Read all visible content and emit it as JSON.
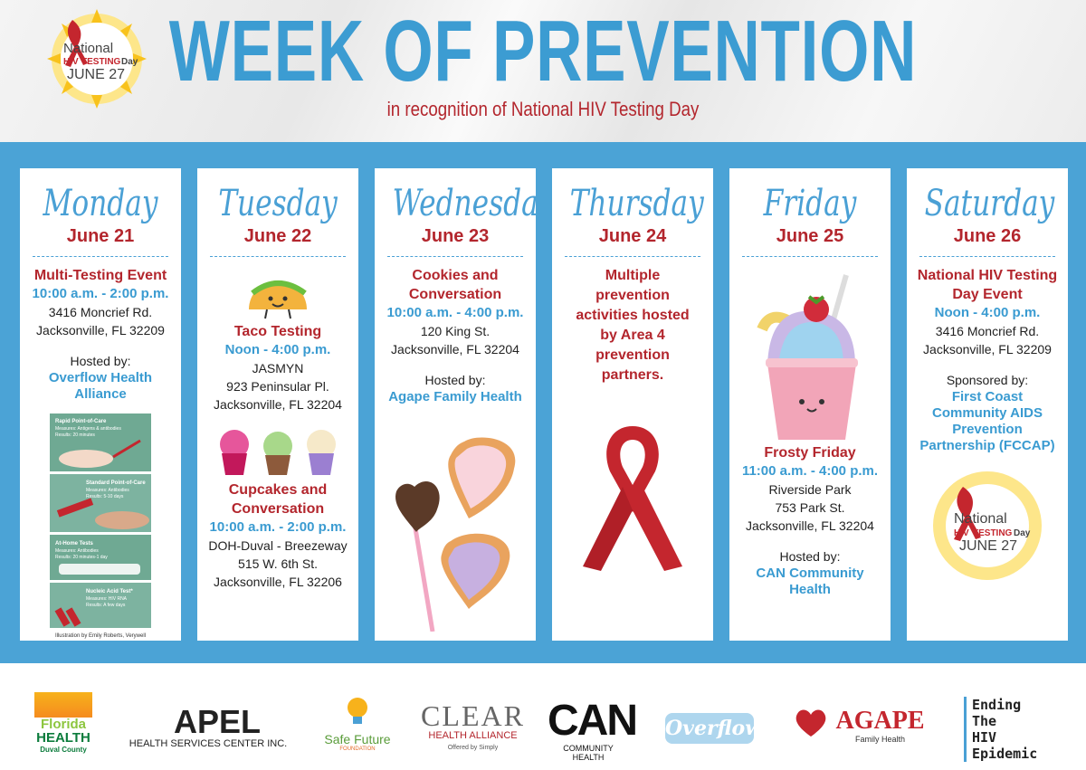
{
  "header": {
    "title": "WEEK OF PREVENTION",
    "subtitle": "in recognition of National HIV Testing Day",
    "badge": {
      "national": "National",
      "hiv": "HIV",
      "testing": "TESTING",
      "day": "Day",
      "date": "JUNE 27"
    }
  },
  "days": [
    {
      "day": "Monday",
      "date": "June 21",
      "event": "Multi-Testing Event",
      "time": "10:00 a.m. - 2:00 p.m.",
      "address": [
        "3416 Moncrief Rd.",
        "Jacksonville, FL 32209"
      ],
      "host_label": "Hosted by:",
      "host": "Overflow Health Alliance",
      "illustration": {
        "panels": [
          {
            "title": "Rapid Point-of-Care",
            "measures": "Measures: Antigens & antibodies",
            "results": "Results: 20 minutes"
          },
          {
            "title": "Standard Point-of-Care",
            "measures": "Measures: Antibodies",
            "results": "Results: 5-10 days"
          },
          {
            "title": "At-Home Tests",
            "measures": "Measures: Antibodies",
            "results": "Results: 20 minutes-1 day"
          },
          {
            "title": "Nucleic Acid Test*",
            "measures": "Measures: HIV RNA",
            "results": "Results: A few days"
          }
        ],
        "credit": "Illustration by Emily Roberts, Verywell"
      }
    },
    {
      "day": "Tuesday",
      "date": "June 22",
      "events": [
        {
          "title": "Taco Testing",
          "time": "Noon - 4:00 p.m.",
          "address": [
            "JASMYN",
            "923 Peninsular Pl.",
            "Jacksonville, FL 32204"
          ]
        },
        {
          "title": "Cupcakes and Conversation",
          "time": "10:00 a.m. - 2:00 p.m.",
          "address": [
            "DOH-Duval - Breezeway",
            "515 W. 6th St.",
            "Jacksonville, FL 32206"
          ]
        }
      ]
    },
    {
      "day": "Wednesday",
      "date": "June 23",
      "event": "Cookies and Conversation",
      "time": "10:00 a.m. - 4:00 p.m.",
      "address": [
        "120 King St.",
        "Jacksonville, FL 32204"
      ],
      "host_label": "Hosted by:",
      "host": "Agape Family Health"
    },
    {
      "day": "Thursday",
      "date": "June 24",
      "event": "Multiple prevention activities hosted by Area 4 prevention partners."
    },
    {
      "day": "Friday",
      "date": "June 25",
      "event": "Frosty Friday",
      "time": "11:00 a.m. - 4:00 p.m.",
      "address": [
        "Riverside Park",
        "753 Park St.",
        "Jacksonville, FL 32204"
      ],
      "host_label": "Hosted by:",
      "host": "CAN Community Health"
    },
    {
      "day": "Saturday",
      "date": "June 26",
      "event": "National HIV Testing Day Event",
      "time": "Noon - 4:00 p.m.",
      "address": [
        "3416 Moncrief Rd.",
        "Jacksonville, FL 32209"
      ],
      "host_label": "Sponsored by:",
      "host": "First Coast Community AIDS Prevention Partnership (FCCAP)"
    }
  ],
  "footer": {
    "logos": [
      {
        "name": "Florida",
        "sub": "HEALTH",
        "note": "Duval County"
      },
      {
        "name": "APEL",
        "sub": "HEALTH SERVICES CENTER INC."
      },
      {
        "name": "Safe Future",
        "sub": "FOUNDATION"
      },
      {
        "name": "CLEAR",
        "sub": "HEALTH ALLIANCE",
        "note": "Offered by Simply"
      },
      {
        "name": "CAN",
        "sub": "COMMUNITY HEALTH"
      },
      {
        "name": "Overflow"
      },
      {
        "name": "AGAPE",
        "sub": "Family Health"
      },
      {
        "lines": [
          "Ending",
          "The",
          "HIV",
          "Epidemic"
        ]
      }
    ]
  }
}
